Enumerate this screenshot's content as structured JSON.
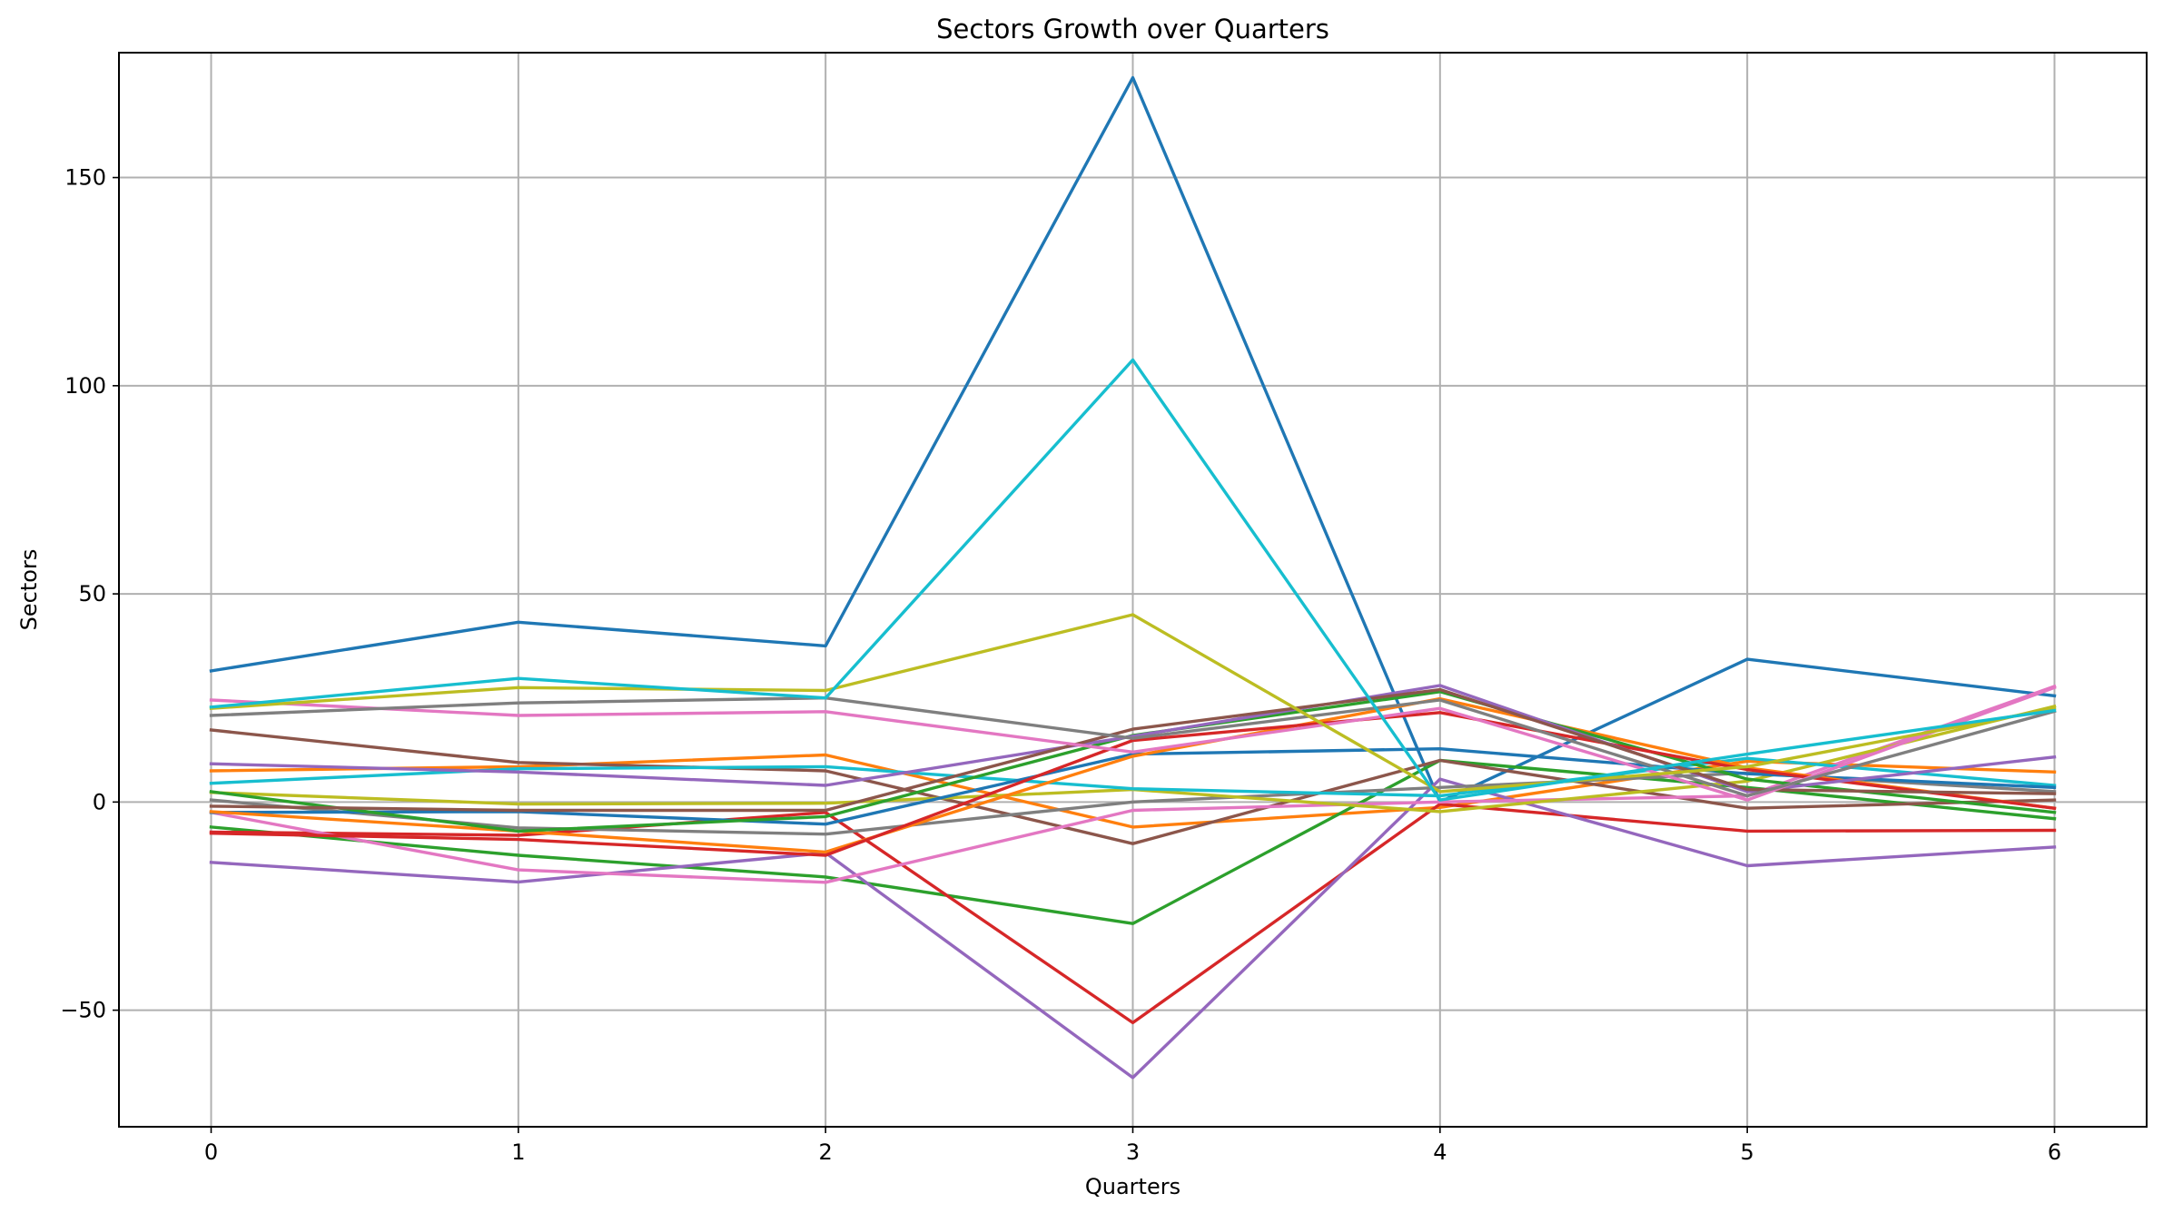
{
  "chart_data": {
    "type": "line",
    "title": "Sectors Growth over Quarters",
    "xlabel": "Quarters",
    "ylabel": "Sectors",
    "x": [
      0,
      1,
      2,
      3,
      4,
      5,
      6
    ],
    "xlim": [
      -0.3,
      6.3
    ],
    "ylim": [
      -78,
      180
    ],
    "xticks": [
      "0",
      "1",
      "2",
      "3",
      "4",
      "5",
      "6"
    ],
    "yticks": [
      -50,
      0,
      50,
      100,
      150
    ],
    "ytick_labels": [
      "−50",
      "0",
      "50",
      "100",
      "150"
    ],
    "grid": true,
    "legend": false,
    "series": [
      {
        "color": "#1f77b4",
        "values": [
          31.5,
          43.2,
          37.5,
          174.0,
          0.0,
          34.3,
          25.5
        ]
      },
      {
        "color": "#ff7f0e",
        "values": [
          7.5,
          8.5,
          11.3,
          -6.0,
          -1.3,
          9.8,
          7.2
        ]
      },
      {
        "color": "#2ca02c",
        "values": [
          -6.0,
          -12.8,
          -18.0,
          -29.2,
          10.0,
          3.5,
          -4.0
        ]
      },
      {
        "color": "#d62728",
        "values": [
          -7.2,
          -8.0,
          -2.5,
          -53.0,
          -0.5,
          -7.0,
          -6.8
        ]
      },
      {
        "color": "#9467bd",
        "values": [
          -14.5,
          -19.2,
          -12.2,
          -66.2,
          5.5,
          -15.3,
          -10.8
        ]
      },
      {
        "color": "#8c564b",
        "values": [
          17.3,
          9.5,
          7.5,
          -10.0,
          10.0,
          -1.5,
          0.5
        ]
      },
      {
        "color": "#e377c2",
        "values": [
          -2.5,
          -16.3,
          -19.3,
          -2.0,
          0.0,
          1.5,
          27.8
        ]
      },
      {
        "color": "#7f7f7f",
        "values": [
          0.5,
          -6.2,
          -7.7,
          0.0,
          3.5,
          7.0,
          2.5
        ]
      },
      {
        "color": "#bcbd22",
        "values": [
          2.3,
          -0.5,
          -0.3,
          3.0,
          -2.3,
          5.0,
          23.0
        ]
      },
      {
        "color": "#17becf",
        "values": [
          4.5,
          8.0,
          8.5,
          3.2,
          1.5,
          10.5,
          4.0
        ]
      },
      {
        "color": "#1f77b4",
        "values": [
          -2.5,
          -2.3,
          -5.3,
          11.5,
          12.8,
          6.8,
          3.5
        ]
      },
      {
        "color": "#ff7f0e",
        "values": [
          -2.3,
          -7.0,
          -12.0,
          11.0,
          24.8,
          8.2,
          -1.5
        ]
      },
      {
        "color": "#2ca02c",
        "values": [
          2.5,
          -7.0,
          -3.5,
          16.0,
          26.5,
          5.5,
          -2.5
        ]
      },
      {
        "color": "#d62728",
        "values": [
          -7.5,
          -9.0,
          -12.8,
          14.8,
          21.5,
          7.8,
          -1.5
        ]
      },
      {
        "color": "#9467bd",
        "values": [
          9.2,
          7.2,
          4.0,
          15.8,
          28.0,
          2.5,
          10.8
        ]
      },
      {
        "color": "#8c564b",
        "values": [
          -1.0,
          -2.0,
          -2.0,
          17.5,
          27.0,
          3.0,
          2.0
        ]
      },
      {
        "color": "#e377c2",
        "values": [
          24.5,
          20.8,
          21.7,
          12.0,
          22.5,
          0.5,
          27.5
        ]
      },
      {
        "color": "#7f7f7f",
        "values": [
          20.8,
          23.8,
          25.0,
          15.3,
          24.5,
          1.5,
          21.8
        ]
      },
      {
        "color": "#bcbd22",
        "values": [
          22.5,
          27.5,
          26.8,
          45.0,
          2.5,
          8.5,
          22.5
        ]
      },
      {
        "color": "#17becf",
        "values": [
          22.8,
          29.7,
          25.0,
          106.2,
          0.5,
          11.5,
          22.0
        ]
      }
    ]
  }
}
